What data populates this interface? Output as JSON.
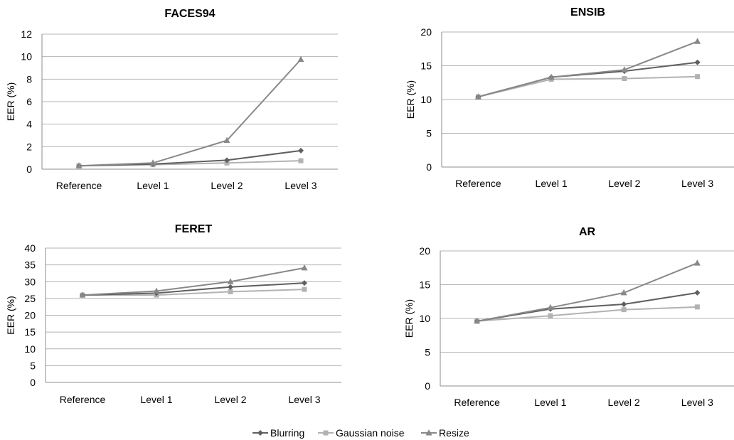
{
  "chart_data": [
    {
      "type": "line",
      "title": "FACES94",
      "categories": [
        "Reference",
        "Level 1",
        "Level 2",
        "Level 3"
      ],
      "ylabel": "EER (%)",
      "ylim": [
        0,
        12
      ],
      "yticks": [
        0,
        2,
        4,
        6,
        8,
        10,
        12
      ],
      "grid": true,
      "series": [
        {
          "name": "Blurring",
          "values": [
            0.3,
            0.45,
            0.8,
            1.65
          ]
        },
        {
          "name": "Gaussian noise",
          "values": [
            0.3,
            0.4,
            0.55,
            0.75
          ]
        },
        {
          "name": "Resize",
          "values": [
            0.3,
            0.55,
            2.55,
            9.75
          ]
        }
      ]
    },
    {
      "type": "line",
      "title": "ENSIB",
      "categories": [
        "Reference",
        "Level 1",
        "Level 2",
        "Level 3"
      ],
      "ylabel": "EER (%)",
      "ylim": [
        0,
        20
      ],
      "yticks": [
        0,
        5,
        10,
        15,
        20
      ],
      "grid": true,
      "series": [
        {
          "name": "Blurring",
          "values": [
            10.4,
            13.3,
            14.2,
            15.5
          ]
        },
        {
          "name": "Gaussian noise",
          "values": [
            10.4,
            13.0,
            13.1,
            13.4
          ]
        },
        {
          "name": "Resize",
          "values": [
            10.4,
            13.3,
            14.4,
            18.6
          ]
        }
      ]
    },
    {
      "type": "line",
      "title": "FERET",
      "categories": [
        "Reference",
        "Level 1",
        "Level 2",
        "Level 3"
      ],
      "ylabel": "EER (%)",
      "ylim": [
        0,
        40
      ],
      "yticks": [
        0,
        5,
        10,
        15,
        20,
        25,
        30,
        35,
        40
      ],
      "grid": true,
      "series": [
        {
          "name": "Blurring",
          "values": [
            26,
            26.6,
            28.4,
            29.6
          ]
        },
        {
          "name": "Gaussian noise",
          "values": [
            26,
            26.0,
            27.0,
            27.7
          ]
        },
        {
          "name": "Resize",
          "values": [
            26,
            27.2,
            30.0,
            34.1
          ]
        }
      ]
    },
    {
      "type": "line",
      "title": "AR",
      "categories": [
        "Reference",
        "Level 1",
        "Level 2",
        "Level 3"
      ],
      "ylabel": "EER (%)",
      "ylim": [
        0,
        20
      ],
      "yticks": [
        0,
        5,
        10,
        15,
        20
      ],
      "grid": true,
      "series": [
        {
          "name": "Blurring",
          "values": [
            9.6,
            11.4,
            12.1,
            13.8
          ]
        },
        {
          "name": "Gaussian noise",
          "values": [
            9.6,
            10.4,
            11.3,
            11.7
          ]
        },
        {
          "name": "Resize",
          "values": [
            9.6,
            11.6,
            13.8,
            18.2
          ]
        }
      ]
    }
  ],
  "legend": {
    "placement": "bottom-center",
    "items": [
      {
        "name": "Blurring",
        "color": "#5f5f5f",
        "marker": "diamond"
      },
      {
        "name": "Gaussian noise",
        "color": "#b2b2b2",
        "marker": "square"
      },
      {
        "name": "Resize",
        "color": "#888888",
        "marker": "triangle"
      }
    ]
  },
  "colors": {
    "gridline": "#b4b4b4",
    "axis": "#8c8c8c"
  }
}
